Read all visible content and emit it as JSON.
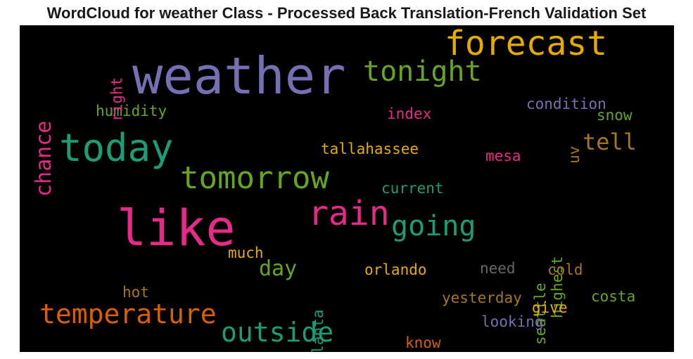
{
  "chart_data": {
    "type": "wordcloud",
    "title": "WordCloud for weather Class - Processed Back Translation-French Validation Set",
    "background": "#000000",
    "colormap": "Dark2",
    "words": [
      {
        "text": "weather",
        "color": "#7570b3"
      },
      {
        "text": "like",
        "color": "#e7298a"
      },
      {
        "text": "forecast",
        "color": "#e6ab02"
      },
      {
        "text": "today",
        "color": "#1b9e77"
      },
      {
        "text": "tomorrow",
        "color": "#66a61e"
      },
      {
        "text": "tonight",
        "color": "#66a61e"
      },
      {
        "text": "rain",
        "color": "#e7298a"
      },
      {
        "text": "going",
        "color": "#1b9e77"
      },
      {
        "text": "temperature",
        "color": "#d95f02"
      },
      {
        "text": "outside",
        "color": "#1b9e77"
      },
      {
        "text": "chance",
        "color": "#e7298a"
      },
      {
        "text": "tell",
        "color": "#a6761d"
      },
      {
        "text": "day",
        "color": "#66a61e"
      },
      {
        "text": "humidity",
        "color": "#66a61e"
      },
      {
        "text": "right",
        "color": "#e7298a"
      },
      {
        "text": "index",
        "color": "#e7298a"
      },
      {
        "text": "condition",
        "color": "#7570b3"
      },
      {
        "text": "snow",
        "color": "#66a61e"
      },
      {
        "text": "uv",
        "color": "#a6761d"
      },
      {
        "text": "tallahassee",
        "color": "#e6ab02"
      },
      {
        "text": "mesa",
        "color": "#e7298a"
      },
      {
        "text": "current",
        "color": "#1b9e77"
      },
      {
        "text": "highest",
        "color": "#66a61e"
      },
      {
        "text": "seattle",
        "color": "#66a61e"
      },
      {
        "text": "much",
        "color": "#e6ab02"
      },
      {
        "text": "atlanta",
        "color": "#1b9e77"
      },
      {
        "text": "orlando",
        "color": "#e6ab02"
      },
      {
        "text": "need",
        "color": "#666666"
      },
      {
        "text": "cold",
        "color": "#a6761d"
      },
      {
        "text": "hot",
        "color": "#a6761d"
      },
      {
        "text": "yesterday",
        "color": "#a6761d"
      },
      {
        "text": "costa",
        "color": "#66a61e"
      },
      {
        "text": "give",
        "color": "#e6ab02"
      },
      {
        "text": "looking",
        "color": "#7570b3"
      },
      {
        "text": "know",
        "color": "#d95f02"
      }
    ]
  }
}
